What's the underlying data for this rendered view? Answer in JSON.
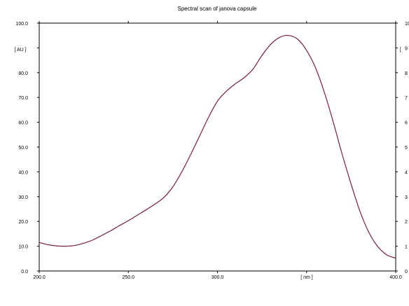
{
  "chart_data": {
    "type": "line",
    "title": "Spectral scan of janova capsule",
    "xlabel": "[ nm ]",
    "ylabel": "[ AU ]",
    "xlim": [
      200,
      400
    ],
    "ylim": [
      0,
      100
    ],
    "x_ticks": [
      200,
      250,
      300,
      350,
      400
    ],
    "x_tick_labels": [
      "200.0",
      "250.0",
      "300.0",
      "",
      "400.0"
    ],
    "y_ticks": [
      0,
      10,
      20,
      30,
      40,
      50,
      60,
      70,
      80,
      90,
      100
    ],
    "y_tick_labels": [
      "0.0",
      "10.0",
      "20.0",
      "30.0",
      "40.0",
      "50.0",
      "60.0",
      "70.0",
      "80.0",
      "",
      "100.0"
    ],
    "right_axis_tick_labels": [
      "0",
      "1",
      "2",
      "3",
      "4",
      "5",
      "6",
      "7",
      "8",
      "9",
      "10"
    ],
    "grid": false,
    "line_color": "#7a1f3a",
    "series": [
      {
        "x": [
          200,
          205,
          210,
          215,
          220,
          225,
          230,
          235,
          240,
          245,
          250,
          255,
          260,
          265,
          270,
          275,
          280,
          285,
          290,
          295,
          300,
          305,
          310,
          315,
          320,
          325,
          330,
          335,
          340,
          345,
          350,
          355,
          360,
          365,
          370,
          375,
          380,
          385,
          390,
          395,
          400
        ],
        "y": [
          11.5,
          10.6,
          10.1,
          10.0,
          10.3,
          11.2,
          12.5,
          14.3,
          16.2,
          18.3,
          20.3,
          22.5,
          24.7,
          27.0,
          29.7,
          34.0,
          40.0,
          47.0,
          54.5,
          62.0,
          68.5,
          72.5,
          75.5,
          78.0,
          81.5,
          87.0,
          91.5,
          94.3,
          95.0,
          93.5,
          89.0,
          82.0,
          72.0,
          60.0,
          47.0,
          35.0,
          24.0,
          15.5,
          9.8,
          6.5,
          5.2
        ]
      }
    ]
  }
}
